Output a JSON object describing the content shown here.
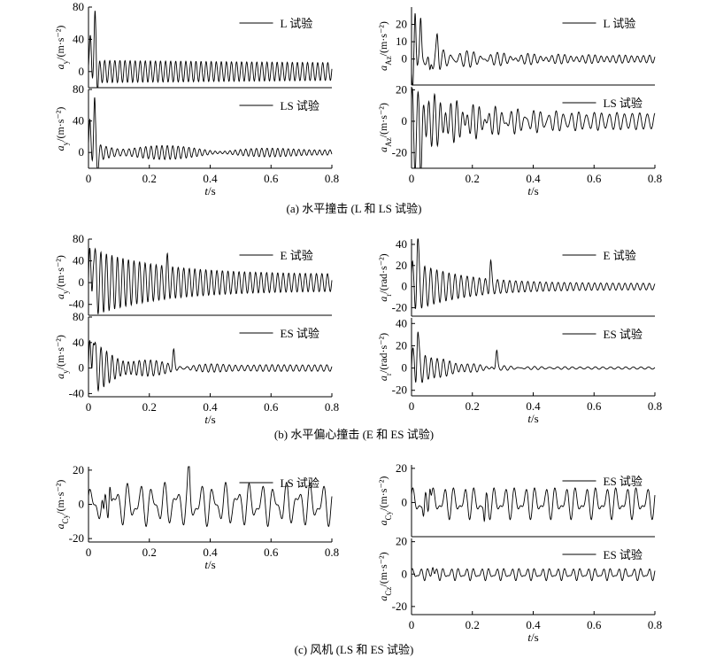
{
  "captions": {
    "a": "(a) 水平撞击 (L 和 LS 试验)",
    "b": "(b) 水平偏心撞击 (E 和 ES 试验)",
    "c": "(c) 风机 (LS 和 ES 试验)"
  },
  "chart_data": [
    {
      "id": "a_ll_top",
      "type": "line",
      "ylabel": "a_y/(m·s⁻²)",
      "xlabel": "",
      "series": [
        {
          "name": "L 试验"
        }
      ],
      "xlim": [
        0,
        0.8
      ],
      "ylim": [
        -20,
        80
      ],
      "yticks": [
        0,
        40,
        80
      ],
      "xticks": [],
      "signal": {
        "offset": 0,
        "spikes": [
          {
            "t": 0.007,
            "a": 40
          },
          {
            "t": 0.022,
            "a": 65
          },
          {
            "t": 0.03,
            "a": -15
          }
        ],
        "osc": [
          {
            "amp": 14,
            "freq": 60,
            "decay": 0.3,
            "phase": 0.3
          }
        ]
      }
    },
    {
      "id": "a_ll_bot",
      "type": "line",
      "ylabel": "a_y/(m·s⁻²)",
      "xlabel": "t/s",
      "series": [
        {
          "name": "LS 试验"
        }
      ],
      "xlim": [
        0,
        0.8
      ],
      "ylim": [
        -20,
        80
      ],
      "yticks": [
        0,
        40,
        80
      ],
      "xticks": [
        0,
        0.2,
        0.4,
        0.6,
        0.8
      ],
      "signal": {
        "offset": 0,
        "spikes": [
          {
            "t": 0.005,
            "a": 30
          },
          {
            "t": 0.02,
            "a": 60
          },
          {
            "t": 0.03,
            "a": -18
          }
        ],
        "osc": [
          {
            "amp": 12,
            "freq": 55,
            "decay": 3.5,
            "phase": 0
          },
          {
            "amp": 4,
            "freq": 58,
            "decay": 0,
            "phase": 1.2
          }
        ]
      }
    },
    {
      "id": "a_lr_top",
      "type": "line",
      "ylabel": "a_A_z/(m·s⁻²)",
      "xlabel": "",
      "series": [
        {
          "name": "L 试验"
        }
      ],
      "xlim": [
        0,
        0.8
      ],
      "ylim": [
        -15,
        30
      ],
      "yticks": [
        0,
        10,
        20
      ],
      "xticks": [],
      "signal": {
        "offset": 0,
        "spikes": [
          {
            "t": 0.004,
            "a": -25
          },
          {
            "t": 0.012,
            "a": 28
          },
          {
            "t": 0.03,
            "a": 20
          },
          {
            "t": 0.06,
            "a": -10
          },
          {
            "t": 0.085,
            "a": 10
          }
        ],
        "osc": [
          {
            "amp": 6,
            "freq": 40,
            "decay": 4,
            "phase": 0
          },
          {
            "amp": 2,
            "freq": 50,
            "decay": 0,
            "phase": 0.7
          }
        ]
      }
    },
    {
      "id": "a_lr_bot",
      "type": "line",
      "ylabel": "a_A_z/(m·s⁻²)",
      "xlabel": "t/s",
      "series": [
        {
          "name": "LS 试验"
        }
      ],
      "xlim": [
        0,
        0.8
      ],
      "ylim": [
        -30,
        22
      ],
      "yticks": [
        -20,
        0,
        20
      ],
      "xticks": [
        0,
        0.2,
        0.4,
        0.6,
        0.8
      ],
      "signal": {
        "offset": 0,
        "spikes": [
          {
            "t": 0.01,
            "a": -15
          },
          {
            "t": 0.03,
            "a": -25
          }
        ],
        "osc": [
          {
            "amp": 18,
            "freq": 55,
            "decay": 5,
            "phase": 0.5
          },
          {
            "amp": 5,
            "freq": 40,
            "decay": 0,
            "phase": 1.5
          }
        ]
      }
    },
    {
      "id": "b_ll_top",
      "type": "line",
      "ylabel": "a_y/(m·s⁻²)",
      "xlabel": "",
      "series": [
        {
          "name": "E 试验"
        }
      ],
      "xlim": [
        0,
        0.8
      ],
      "ylim": [
        -60,
        80
      ],
      "yticks": [
        -40,
        0,
        40,
        80
      ],
      "xticks": [],
      "signal": {
        "offset": 0,
        "spikes": [
          {
            "t": 0.015,
            "a": 70
          },
          {
            "t": 0.26,
            "a": 25
          }
        ],
        "osc": [
          {
            "amp": 50,
            "freq": 55,
            "decay": 4.5,
            "phase": 0
          },
          {
            "amp": 15,
            "freq": 55,
            "decay": 0,
            "phase": 0.3
          }
        ]
      }
    },
    {
      "id": "b_ll_bot",
      "type": "line",
      "ylabel": "a_y/(m·s⁻²)",
      "xlabel": "t/s",
      "series": [
        {
          "name": "ES 试验"
        }
      ],
      "xlim": [
        0,
        0.8
      ],
      "ylim": [
        -45,
        80
      ],
      "yticks": [
        -40,
        0,
        40,
        80
      ],
      "xticks": [
        0,
        0.2,
        0.4,
        0.6,
        0.8
      ],
      "signal": {
        "offset": 0,
        "spikes": [
          {
            "t": 0.015,
            "a": 70
          },
          {
            "t": 0.28,
            "a": 25
          }
        ],
        "osc": [
          {
            "amp": 40,
            "freq": 55,
            "decay": 8,
            "phase": 0
          },
          {
            "amp": 5,
            "freq": 50,
            "decay": 0,
            "phase": 0.5
          }
        ]
      }
    },
    {
      "id": "b_lr_top",
      "type": "line",
      "ylabel": "a_r/(rad·s⁻²)",
      "xlabel": "",
      "series": [
        {
          "name": "E 试验"
        }
      ],
      "xlim": [
        0,
        0.8
      ],
      "ylim": [
        -28,
        45
      ],
      "yticks": [
        -20,
        0,
        20,
        40
      ],
      "xticks": [],
      "signal": {
        "offset": 0,
        "spikes": [
          {
            "t": 0.02,
            "a": 35
          },
          {
            "t": 0.26,
            "a": 20
          }
        ],
        "osc": [
          {
            "amp": 22,
            "freq": 50,
            "decay": 6,
            "phase": 0.4
          },
          {
            "amp": 3,
            "freq": 50,
            "decay": 0,
            "phase": 1.1
          }
        ]
      }
    },
    {
      "id": "b_lr_bot",
      "type": "line",
      "ylabel": "a_r/(rad·s⁻²)",
      "xlabel": "t/s",
      "series": [
        {
          "name": "ES 试验"
        }
      ],
      "xlim": [
        0,
        0.8
      ],
      "ylim": [
        -25,
        45
      ],
      "yticks": [
        -20,
        0,
        20,
        40
      ],
      "xticks": [
        0,
        0.2,
        0.4,
        0.6,
        0.8
      ],
      "signal": {
        "offset": 0,
        "spikes": [
          {
            "t": 0.02,
            "a": 30
          },
          {
            "t": 0.28,
            "a": 15
          }
        ],
        "osc": [
          {
            "amp": 18,
            "freq": 50,
            "decay": 9,
            "phase": 0
          },
          {
            "amp": 1,
            "freq": 40,
            "decay": 0,
            "phase": 0.5
          }
        ]
      }
    },
    {
      "id": "c_l",
      "type": "line",
      "ylabel": "a_C_y/(m·s⁻²)",
      "xlabel": "t/s",
      "series": [
        {
          "name": "LS 试验"
        }
      ],
      "xlim": [
        0,
        0.8
      ],
      "ylim": [
        -22,
        22
      ],
      "yticks": [
        -20,
        0,
        20
      ],
      "xticks": [
        0,
        0.2,
        0.4,
        0.6,
        0.8
      ],
      "signal": {
        "offset": 0,
        "spikes": [
          {
            "t": 0.05,
            "a": -15
          },
          {
            "t": 0.07,
            "a": 18
          },
          {
            "t": 0.33,
            "a": 15
          }
        ],
        "osc": [
          {
            "amp": 8,
            "freq": 25,
            "decay": 0,
            "phase": 0
          },
          {
            "amp": 5,
            "freq": 40,
            "decay": 0,
            "phase": 1.2
          }
        ]
      }
    },
    {
      "id": "c_r_top",
      "type": "line",
      "ylabel": "a_C_y/(m·s⁻²)",
      "xlabel": "",
      "series": [
        {
          "name": "ES 试验"
        }
      ],
      "xlim": [
        0,
        0.8
      ],
      "ylim": [
        -20,
        22
      ],
      "yticks": [
        0,
        20
      ],
      "xticks": [],
      "signal": {
        "offset": 0,
        "spikes": [
          {
            "t": 0.04,
            "a": -12
          },
          {
            "t": 0.06,
            "a": 16
          },
          {
            "t": 0.24,
            "a": -15
          }
        ],
        "osc": [
          {
            "amp": 6,
            "freq": 30,
            "decay": 0,
            "phase": 0.2
          },
          {
            "amp": 4,
            "freq": 45,
            "decay": 0,
            "phase": 0.9
          }
        ]
      }
    },
    {
      "id": "c_r_bot",
      "type": "line",
      "ylabel": "a_C_z/(m·s⁻²)",
      "xlabel": "t/s",
      "series": [
        {
          "name": "ES 试验"
        }
      ],
      "xlim": [
        0,
        0.8
      ],
      "ylim": [
        -25,
        22
      ],
      "yticks": [
        -20,
        0,
        20
      ],
      "xticks": [
        0,
        0.2,
        0.4,
        0.6,
        0.8
      ],
      "signal": {
        "offset": 0,
        "spikes": [
          {
            "t": 0.07,
            "a": 5
          }
        ],
        "osc": [
          {
            "amp": 2.5,
            "freq": 40,
            "decay": 0,
            "phase": 0.3
          },
          {
            "amp": 1.5,
            "freq": 60,
            "decay": 0,
            "phase": 1.1
          }
        ]
      }
    }
  ]
}
